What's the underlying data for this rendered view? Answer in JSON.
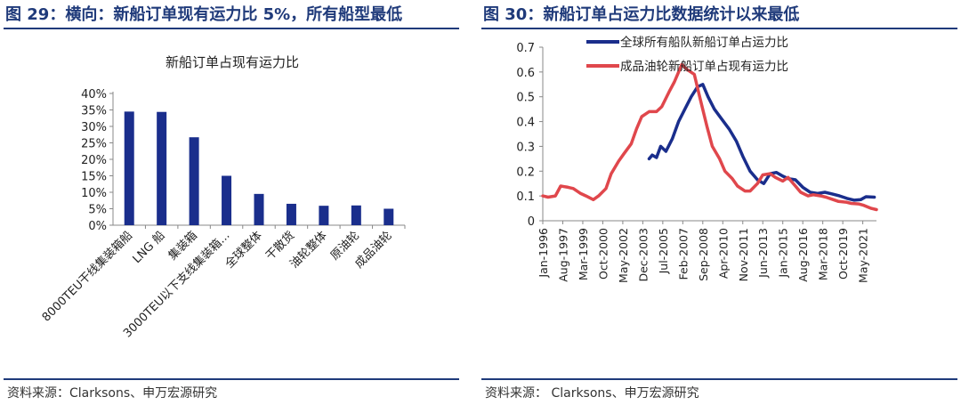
{
  "left": {
    "figure_title": "图 29：横向：新船订单现有运力比 5%，所有船型最低",
    "source": "资料来源：Clarksons、申万宏源研究"
  },
  "right": {
    "figure_title": "图 30：新船订单占运力比数据统计以来最低",
    "source": "资料来源： Clarksons、申万宏源研究"
  },
  "chart_data": [
    {
      "type": "bar",
      "title": "新船订单占现有运力比",
      "categories": [
        "8000TEU干线集装箱船",
        "LNG 船",
        "集装箱",
        "3000TEU以下支线集装箱...",
        "全球整体",
        "干散货",
        "油轮整体",
        "原油轮",
        "成品油轮"
      ],
      "values": [
        0.345,
        0.344,
        0.267,
        0.15,
        0.095,
        0.065,
        0.059,
        0.06,
        0.05
      ],
      "y_ticks": [
        "0%",
        "5%",
        "10%",
        "15%",
        "20%",
        "25%",
        "30%",
        "35%",
        "40%"
      ],
      "ylim": [
        0,
        0.4
      ],
      "colors": {
        "bar": "#1a2e8c"
      }
    },
    {
      "type": "line",
      "x_ticks": [
        "Jan-1996",
        "Aug-1997",
        "Mar-1999",
        "Oct-2000",
        "May-2002",
        "Dec-2003",
        "Jul-2005",
        "Feb-2007",
        "Sep-2008",
        "Apr-2010",
        "Nov-2011",
        "Jun-2013",
        "Jan-2015",
        "Aug-2016",
        "Mar-2018",
        "Oct-2019",
        "May-2021"
      ],
      "y_ticks": [
        "0",
        "0.1",
        "0.2",
        "0.3",
        "0.4",
        "0.5",
        "0.6",
        "0.7"
      ],
      "ylim": [
        0,
        0.7
      ],
      "xlim": [
        "1996-01",
        "2022-06"
      ],
      "legend_position": "top",
      "series": [
        {
          "name": "全球所有船队新船订单占运力比",
          "color": "#1a2e8c",
          "points": [
            [
              "2004-06",
              0.25
            ],
            [
              "2004-09",
              0.265
            ],
            [
              "2005-01",
              0.255
            ],
            [
              "2005-05",
              0.3
            ],
            [
              "2005-10",
              0.28
            ],
            [
              "2006-04",
              0.33
            ],
            [
              "2006-10",
              0.4
            ],
            [
              "2007-04",
              0.45
            ],
            [
              "2007-10",
              0.5
            ],
            [
              "2008-04",
              0.54
            ],
            [
              "2008-09",
              0.55
            ],
            [
              "2009-02",
              0.5
            ],
            [
              "2009-08",
              0.45
            ],
            [
              "2010-03",
              0.41
            ],
            [
              "2010-10",
              0.37
            ],
            [
              "2011-05",
              0.32
            ],
            [
              "2011-11",
              0.26
            ],
            [
              "2012-06",
              0.2
            ],
            [
              "2013-01",
              0.165
            ],
            [
              "2013-07",
              0.15
            ],
            [
              "2014-01",
              0.19
            ],
            [
              "2014-07",
              0.195
            ],
            [
              "2015-01",
              0.18
            ],
            [
              "2015-06",
              0.17
            ],
            [
              "2016-01",
              0.165
            ],
            [
              "2016-08",
              0.135
            ],
            [
              "2017-03",
              0.115
            ],
            [
              "2017-10",
              0.11
            ],
            [
              "2018-05",
              0.115
            ],
            [
              "2018-12",
              0.108
            ],
            [
              "2019-07",
              0.1
            ],
            [
              "2020-02",
              0.09
            ],
            [
              "2020-09",
              0.083
            ],
            [
              "2021-03",
              0.085
            ],
            [
              "2021-08",
              0.097
            ],
            [
              "2022-04",
              0.095
            ]
          ]
        },
        {
          "name": "成品油轮新船订单占现有运力比",
          "color": "#e0474c",
          "points": [
            [
              "1996-01",
              0.1
            ],
            [
              "1996-06",
              0.095
            ],
            [
              "1997-01",
              0.1
            ],
            [
              "1997-06",
              0.14
            ],
            [
              "1998-01",
              0.135
            ],
            [
              "1998-06",
              0.13
            ],
            [
              "1999-01",
              0.11
            ],
            [
              "1999-06",
              0.1
            ],
            [
              "2000-01",
              0.085
            ],
            [
              "2000-06",
              0.1
            ],
            [
              "2001-01",
              0.13
            ],
            [
              "2001-06",
              0.19
            ],
            [
              "2002-01",
              0.24
            ],
            [
              "2002-06",
              0.27
            ],
            [
              "2003-01",
              0.31
            ],
            [
              "2003-06",
              0.37
            ],
            [
              "2003-11",
              0.42
            ],
            [
              "2004-06",
              0.44
            ],
            [
              "2005-01",
              0.44
            ],
            [
              "2005-06",
              0.46
            ],
            [
              "2006-01",
              0.52
            ],
            [
              "2006-06",
              0.56
            ],
            [
              "2007-01",
              0.63
            ],
            [
              "2007-06",
              0.61
            ],
            [
              "2008-01",
              0.59
            ],
            [
              "2008-06",
              0.5
            ],
            [
              "2009-01",
              0.38
            ],
            [
              "2009-06",
              0.3
            ],
            [
              "2010-01",
              0.25
            ],
            [
              "2010-06",
              0.2
            ],
            [
              "2011-01",
              0.17
            ],
            [
              "2011-06",
              0.14
            ],
            [
              "2012-01",
              0.12
            ],
            [
              "2012-06",
              0.12
            ],
            [
              "2013-01",
              0.15
            ],
            [
              "2013-06",
              0.185
            ],
            [
              "2014-01",
              0.19
            ],
            [
              "2014-06",
              0.175
            ],
            [
              "2015-01",
              0.16
            ],
            [
              "2015-06",
              0.175
            ],
            [
              "2016-01",
              0.14
            ],
            [
              "2016-06",
              0.115
            ],
            [
              "2017-01",
              0.1
            ],
            [
              "2017-06",
              0.105
            ],
            [
              "2018-01",
              0.1
            ],
            [
              "2018-06",
              0.095
            ],
            [
              "2019-01",
              0.085
            ],
            [
              "2019-06",
              0.078
            ],
            [
              "2020-01",
              0.075
            ],
            [
              "2020-06",
              0.07
            ],
            [
              "2021-01",
              0.068
            ],
            [
              "2021-06",
              0.062
            ],
            [
              "2022-01",
              0.05
            ],
            [
              "2022-06",
              0.045
            ]
          ]
        }
      ]
    }
  ]
}
